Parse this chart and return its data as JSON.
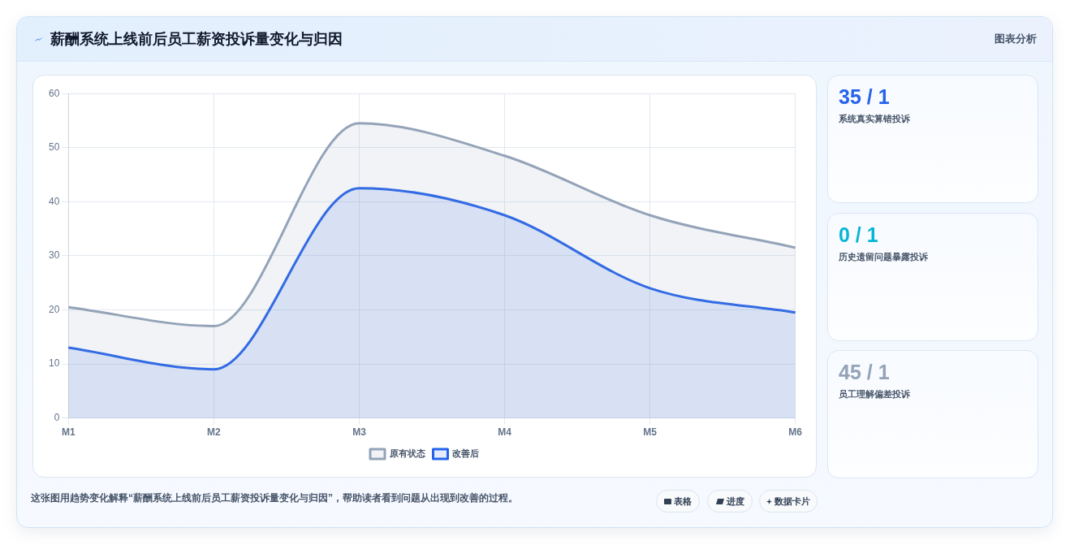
{
  "chart_data": [
    {
      "type": "area",
      "title": "薪酬系统上线前后员工薪资投诉量变化与归因",
      "categories": [
        "M1",
        "M2",
        "M3",
        "M4",
        "M5",
        "M6"
      ],
      "series": [
        {
          "name": "原有状态",
          "color": "#94a3b8",
          "values": [
            20.5,
            17,
            54.5,
            48.5,
            37.5,
            31.5
          ]
        },
        {
          "name": "改善后",
          "color": "#2563eb",
          "values": [
            13,
            9,
            42.5,
            37.5,
            24,
            19.5
          ]
        }
      ],
      "ylim": [
        0,
        60
      ],
      "yticks": [
        0,
        10,
        20,
        30,
        40,
        50,
        60
      ],
      "grid": true,
      "legend": "bottom",
      "annotations": [
        "图表分析",
        "这张图用趋势变化解释“薪酬系统上线前后员工薪资投诉量变化与归因”，帮助读者看到问题从出现到改善的过程。",
        "表格",
        "进度",
        "数据卡片"
      ]
    },
    {
      "type": "other",
      "annotations": [
        "35 / 1",
        "系统真实算错投诉",
        "0 / 1",
        "历史遗留问题暴露投诉",
        "45 / 1",
        "员工理解偏差投诉"
      ]
    }
  ]
}
